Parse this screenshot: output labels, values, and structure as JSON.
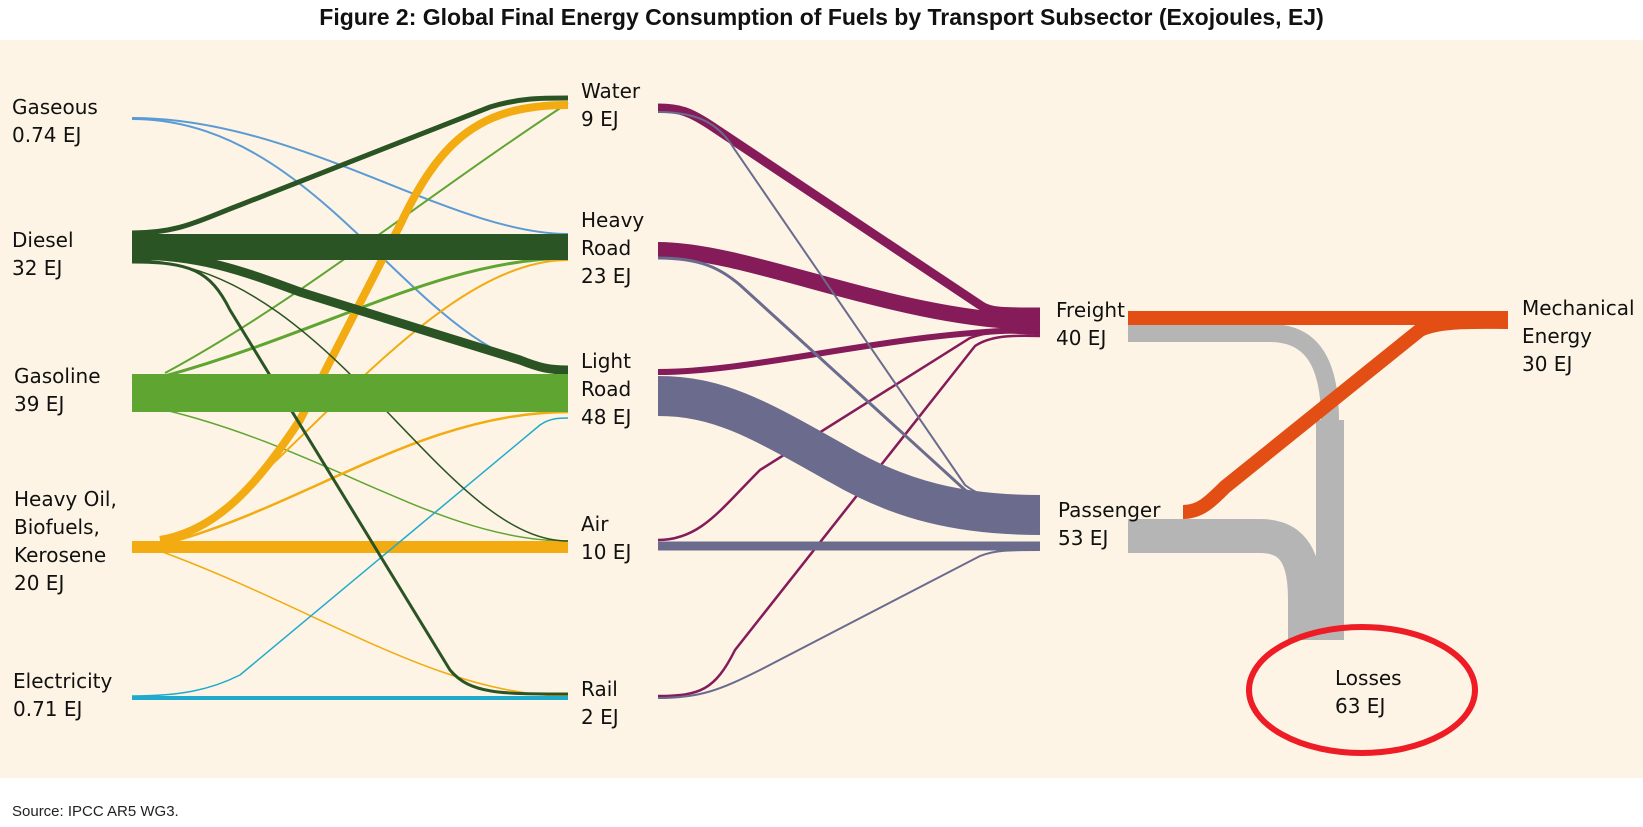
{
  "title": "Figure 2: Global Final Energy Consumption of Fuels by Transport Subsector (Exojoules, EJ)",
  "source": "Source: IPCC AR5 WG3.",
  "colors": {
    "background": "#fdf4e5",
    "gaseous": "#5b9bd5",
    "diesel": "#2b5425",
    "gasoline": "#5fa531",
    "heavy_oil": "#f2ab10",
    "electricity": "#1faacb",
    "freight_flow": "#851b59",
    "passenger_flow": "#6b6b8d",
    "mechanical_energy": "#e24e14",
    "losses": "#b5b5b5",
    "highlight": "#ee1c25"
  },
  "nodes": {
    "fuels": [
      {
        "id": "gaseous",
        "label": "Gaseous\n0.74 EJ"
      },
      {
        "id": "diesel",
        "label": "Diesel\n32 EJ"
      },
      {
        "id": "gasoline",
        "label": "Gasoline\n39 EJ"
      },
      {
        "id": "heavy_oil",
        "label": "Heavy Oil,\nBiofuels,\nKerosene\n20 EJ"
      },
      {
        "id": "electricity",
        "label": "Electricity\n0.71 EJ"
      }
    ],
    "subsectors": [
      {
        "id": "water",
        "label": "Water\n9 EJ"
      },
      {
        "id": "heavy_road",
        "label": "Heavy\nRoad\n23 EJ"
      },
      {
        "id": "light_road",
        "label": "Light\nRoad\n48 EJ"
      },
      {
        "id": "air",
        "label": "Air\n10 EJ"
      },
      {
        "id": "rail",
        "label": "Rail\n2 EJ"
      }
    ],
    "services": [
      {
        "id": "freight",
        "label": "Freight\n40 EJ"
      },
      {
        "id": "passenger",
        "label": "Passenger\n53 EJ"
      }
    ],
    "outputs": [
      {
        "id": "mechanical",
        "label": "Mechanical\nEnergy\n 30 EJ"
      },
      {
        "id": "losses",
        "label": "Losses\n63 EJ"
      }
    ]
  },
  "highlight": {
    "target": "losses",
    "shape": "ellipse"
  }
}
